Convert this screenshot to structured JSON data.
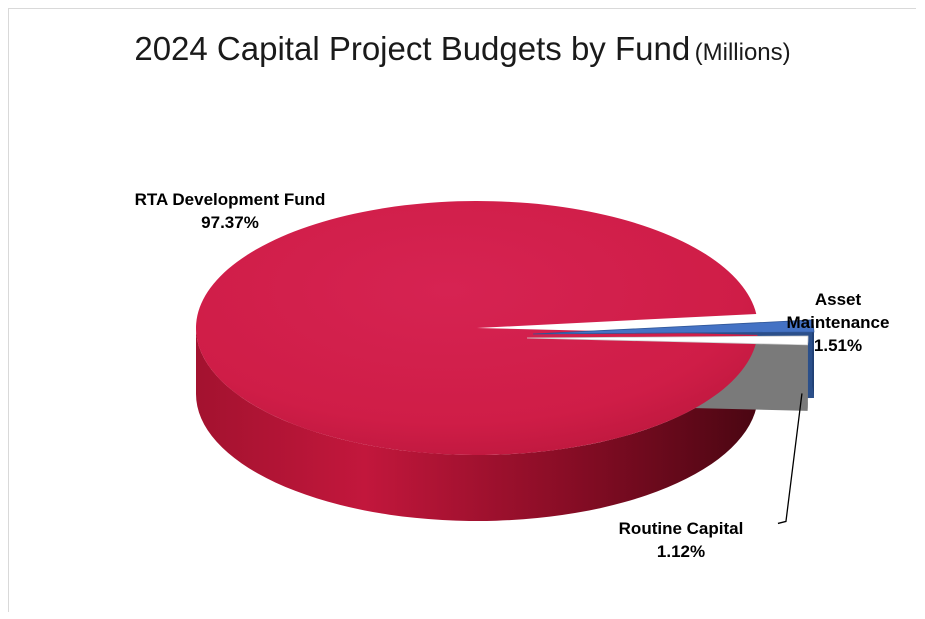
{
  "chart_data": {
    "type": "pie",
    "style": "3d",
    "title": "2024 Capital Project Budgets by Fund",
    "subtitle": "(Millions)",
    "slices": [
      {
        "label": "RTA Development Fund",
        "percent_label": "97.37%",
        "value": 97.37,
        "color": "#cf1d47",
        "exploded": false
      },
      {
        "label": "Asset Maintenance",
        "percent_label": "1.51%",
        "value": 1.51,
        "color": "#4472c4",
        "exploded": true
      },
      {
        "label": "Routine Capital",
        "percent_label": "1.12%",
        "value": 1.12,
        "color": "#ffffff",
        "exploded": true
      }
    ],
    "legend": "none"
  }
}
